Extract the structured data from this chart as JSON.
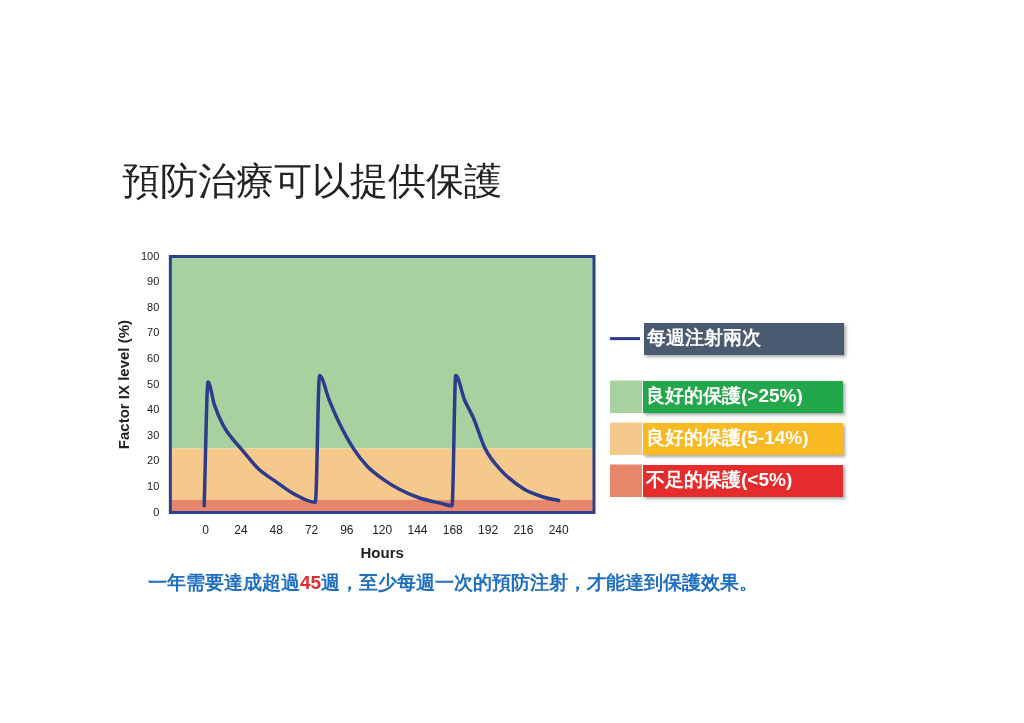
{
  "chart_data": {
    "type": "line",
    "title": "預防治療可以提供保護",
    "xlabel": "Hours",
    "ylabel": "Factor IX level (%)",
    "annotations": [
      "一年需要達成超過45週，至少每週一次的預防注射，才能達到保護效果。"
    ],
    "series": [
      {
        "name": "每週注射兩次",
        "color": "#2e3b8c",
        "x": [
          -1,
          1.6,
          6,
          12,
          18,
          24,
          36,
          48,
          60,
          74.6,
          77.4,
          84,
          90,
          100.5,
          110,
          120,
          132,
          144,
          160,
          167.5,
          170,
          176,
          182,
          190,
          200,
          216,
          230,
          240
        ],
        "values": [
          2.7,
          51,
          42,
          34,
          29,
          25,
          17,
          12,
          7.3,
          4,
          53.6,
          44,
          36,
          25,
          18,
          13.3,
          9,
          6,
          3.6,
          2.7,
          53.6,
          44,
          37,
          25,
          17,
          9.3,
          6,
          4.7
        ]
      }
    ],
    "xlim": [
      -24,
      264
    ],
    "xticks": [
      0,
      24,
      48,
      72,
      96,
      120,
      144,
      168,
      192,
      216,
      240
    ],
    "ylim": [
      0,
      100
    ],
    "yticks": [
      0,
      10,
      20,
      30,
      40,
      50,
      60,
      70,
      80,
      90,
      100
    ],
    "bands": [
      {
        "axis": "y",
        "from": 25,
        "to": 100,
        "label": "良好的保護(>25%)",
        "color": "#a7d19e"
      },
      {
        "axis": "y",
        "from": 5,
        "to": 25,
        "label": "良好的保護(5-14%)",
        "color": "#f5c98c"
      },
      {
        "axis": "y",
        "from": 0,
        "to": 5,
        "label": "不足的保護(<5%)",
        "color": "#e8866b"
      }
    ],
    "grid": false,
    "legend": "right",
    "marker": "none",
    "line_style": "solid"
  }
}
